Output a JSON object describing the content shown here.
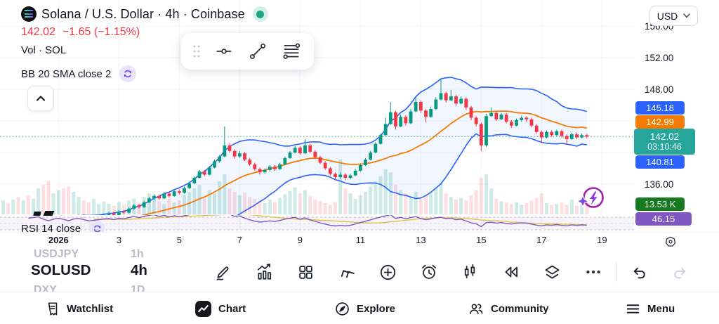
{
  "header": {
    "title": "Solana / U.S. Dollar · 4h · Coinbase",
    "price": "142.02",
    "change": "−1.65 (−1.15%)",
    "volume_label": "Vol · SOL",
    "bb_label": "BB 20 SMA close 2",
    "rsi_label": "RSI 14 close"
  },
  "currency_button": {
    "label": "USD"
  },
  "price_scale": {
    "labels": [
      "156.00",
      "152.00",
      "148.00",
      "136.00"
    ]
  },
  "badges": {
    "upper_band": "145.18",
    "basis": "142.99",
    "last_price": "142.02",
    "countdown": "03:10:46",
    "lower_band": "140.81",
    "volume": "13.53 K",
    "rsi": "46.15",
    "colors": {
      "band": "#2962ff",
      "basis": "#f57c00",
      "last": "#26a69a",
      "volume": "#167a1f",
      "rsi": "#7e57c2"
    }
  },
  "picker": {
    "rows": [
      {
        "symbol": "USDJPY",
        "tf": "1h"
      },
      {
        "symbol": "SOLUSD",
        "tf": "4h"
      },
      {
        "symbol": "DXY",
        "tf": "1D"
      }
    ],
    "active_index": 1
  },
  "floating_toolbar": {
    "tools": [
      "drag-handle",
      "horizontal-line-tool",
      "trend-line-tool",
      "fib-retracement-tool"
    ]
  },
  "mini_toolbar": {
    "tools": [
      "draw",
      "indicators",
      "layouts",
      "patterns",
      "add",
      "alert",
      "chart-type",
      "bar-replay",
      "object-tree",
      "more",
      "undo",
      "redo"
    ]
  },
  "nav": {
    "items": [
      "Watchlist",
      "Chart",
      "Explore",
      "Community",
      "Menu"
    ]
  },
  "chart_data": {
    "type": "candlestick",
    "symbol": "SOLUSD",
    "exchange": "Coinbase",
    "interval": "4h",
    "title": "Solana / U.S. Dollar",
    "last": {
      "price": 142.02,
      "change": -1.65,
      "change_pct": -1.15,
      "volume": "13.53 K",
      "rsi": 46.15,
      "bb_upper": 145.18,
      "bb_basis": 142.99,
      "bb_lower": 140.81,
      "countdown": "03:10:46"
    },
    "x_ticks": [
      "2026",
      "3",
      "5",
      "7",
      "9",
      "11",
      "13",
      "15",
      "17",
      "19"
    ],
    "y_gridlines": [
      156,
      152,
      148,
      144,
      140,
      136
    ],
    "indicators": {
      "bollinger": {
        "period": 20,
        "stddev": 2,
        "basis_type": "SMA"
      },
      "rsi": {
        "period": 14
      },
      "rsi_levels": [
        70,
        50,
        30
      ]
    },
    "candles": [
      [
        129.9,
        130.1,
        129.6,
        129.8
      ],
      [
        129.8,
        130.3,
        129.6,
        130.1
      ],
      [
        130.1,
        130.3,
        129.7,
        129.9
      ],
      [
        129.9,
        130.5,
        129.7,
        130.3
      ],
      [
        130.3,
        130.5,
        130.0,
        130.2
      ],
      [
        130.2,
        130.8,
        130.0,
        130.6
      ],
      [
        130.6,
        130.8,
        130.2,
        130.4
      ],
      [
        130.4,
        131.0,
        130.2,
        130.8
      ],
      [
        130.8,
        131.0,
        130.4,
        130.6
      ],
      [
        130.6,
        131.2,
        130.4,
        131.0
      ],
      [
        131.0,
        131.2,
        130.6,
        130.8
      ],
      [
        130.8,
        131.3,
        130.6,
        131.1
      ],
      [
        131.1,
        131.3,
        130.7,
        130.9
      ],
      [
        130.9,
        131.5,
        130.7,
        131.3
      ],
      [
        131.3,
        131.5,
        130.9,
        131.1
      ],
      [
        131.1,
        131.7,
        130.9,
        131.4
      ],
      [
        131.4,
        131.8,
        131.2,
        131.6
      ],
      [
        131.6,
        131.8,
        131.0,
        131.2
      ],
      [
        131.2,
        131.4,
        130.7,
        130.9
      ],
      [
        130.9,
        131.6,
        130.8,
        131.4
      ],
      [
        131.4,
        131.9,
        131.2,
        131.7
      ],
      [
        131.7,
        131.9,
        131.3,
        131.5
      ],
      [
        131.5,
        131.7,
        131.0,
        131.2
      ],
      [
        131.2,
        132.0,
        131.1,
        131.8
      ],
      [
        131.8,
        132.2,
        131.6,
        132.0
      ],
      [
        132.0,
        132.2,
        131.6,
        131.8
      ],
      [
        131.8,
        132.0,
        131.3,
        131.5
      ],
      [
        131.5,
        131.9,
        131.3,
        131.7
      ],
      [
        131.7,
        132.1,
        131.5,
        131.9
      ],
      [
        131.9,
        132.3,
        131.7,
        132.1
      ],
      [
        132.1,
        132.5,
        131.9,
        132.3
      ],
      [
        132.3,
        132.5,
        131.9,
        132.1
      ],
      [
        132.1,
        132.7,
        132.0,
        132.5
      ],
      [
        132.5,
        132.7,
        132.2,
        132.4
      ],
      [
        132.4,
        133.1,
        132.3,
        132.9
      ],
      [
        132.9,
        133.5,
        132.7,
        133.3
      ],
      [
        133.3,
        133.5,
        132.9,
        133.1
      ],
      [
        133.1,
        133.9,
        133.0,
        133.7
      ],
      [
        133.7,
        134.4,
        133.6,
        134.2
      ],
      [
        134.2,
        134.7,
        134.0,
        134.5
      ],
      [
        134.5,
        134.7,
        134.0,
        134.2
      ],
      [
        134.2,
        135.0,
        134.1,
        134.8
      ],
      [
        134.8,
        135.0,
        134.3,
        134.5
      ],
      [
        134.5,
        135.3,
        134.4,
        135.1
      ],
      [
        135.1,
        135.3,
        134.7,
        134.9
      ],
      [
        134.9,
        135.7,
        134.8,
        135.5
      ],
      [
        135.5,
        136.3,
        135.4,
        136.1
      ],
      [
        136.1,
        137.0,
        136.0,
        136.8
      ],
      [
        136.8,
        137.8,
        136.7,
        137.6
      ],
      [
        137.6,
        137.8,
        137.0,
        137.2
      ],
      [
        137.2,
        138.3,
        137.1,
        138.1
      ],
      [
        138.1,
        139.1,
        138.0,
        138.9
      ],
      [
        138.9,
        139.7,
        138.7,
        139.5
      ],
      [
        139.5,
        143.3,
        139.4,
        140.9
      ],
      [
        140.9,
        141.2,
        140.0,
        140.2
      ],
      [
        140.2,
        140.4,
        139.2,
        139.5
      ],
      [
        139.5,
        140.2,
        139.3,
        139.9
      ],
      [
        139.9,
        140.1,
        138.9,
        139.1
      ],
      [
        139.1,
        139.3,
        138.3,
        138.5
      ],
      [
        138.5,
        138.7,
        137.7,
        137.9
      ],
      [
        137.9,
        138.1,
        137.2,
        137.5
      ],
      [
        137.5,
        138.0,
        137.3,
        137.8
      ],
      [
        137.8,
        138.4,
        137.6,
        138.2
      ],
      [
        138.2,
        138.4,
        137.7,
        137.9
      ],
      [
        137.9,
        138.7,
        137.8,
        138.5
      ],
      [
        138.5,
        139.5,
        138.4,
        139.3
      ],
      [
        139.3,
        140.2,
        139.2,
        140.0
      ],
      [
        140.0,
        140.8,
        139.9,
        140.6
      ],
      [
        140.6,
        140.8,
        139.7,
        139.9
      ],
      [
        139.9,
        141.7,
        139.8,
        140.9
      ],
      [
        140.9,
        141.1,
        139.9,
        140.1
      ],
      [
        140.1,
        140.3,
        139.2,
        139.4
      ],
      [
        139.4,
        139.6,
        138.5,
        138.7
      ],
      [
        138.7,
        138.9,
        137.8,
        138.0
      ],
      [
        138.0,
        138.2,
        137.1,
        137.3
      ],
      [
        137.3,
        137.5,
        136.6,
        136.9
      ],
      [
        136.9,
        137.5,
        136.7,
        137.2
      ],
      [
        137.2,
        137.4,
        136.5,
        136.8
      ],
      [
        136.8,
        137.3,
        136.6,
        137.1
      ],
      [
        137.1,
        137.9,
        137.0,
        137.7
      ],
      [
        137.7,
        138.6,
        137.6,
        138.4
      ],
      [
        138.4,
        139.3,
        138.3,
        139.1
      ],
      [
        139.1,
        140.2,
        139.0,
        140.0
      ],
      [
        140.0,
        141.3,
        139.9,
        141.1
      ],
      [
        141.1,
        142.4,
        141.0,
        142.2
      ],
      [
        142.2,
        144.4,
        142.1,
        143.6
      ],
      [
        143.6,
        146.4,
        143.5,
        145.1
      ],
      [
        145.1,
        145.3,
        142.9,
        143.3
      ],
      [
        143.3,
        144.8,
        143.2,
        144.5
      ],
      [
        144.5,
        144.7,
        143.4,
        143.7
      ],
      [
        143.7,
        145.5,
        143.6,
        145.2
      ],
      [
        145.2,
        147.1,
        145.1,
        146.4
      ],
      [
        146.4,
        146.6,
        145.0,
        145.3
      ],
      [
        145.3,
        145.5,
        143.8,
        144.5
      ],
      [
        144.5,
        145.8,
        144.4,
        145.5
      ],
      [
        145.5,
        147.0,
        145.4,
        146.7
      ],
      [
        146.7,
        149.3,
        146.6,
        147.5
      ],
      [
        147.5,
        147.7,
        146.3,
        146.6
      ],
      [
        146.6,
        147.9,
        146.5,
        147.1
      ],
      [
        147.1,
        147.3,
        145.9,
        146.2
      ],
      [
        146.2,
        147.1,
        146.1,
        146.8
      ],
      [
        146.8,
        147.0,
        145.4,
        145.7
      ],
      [
        145.7,
        145.9,
        144.1,
        144.4
      ],
      [
        144.4,
        144.6,
        143.3,
        143.6
      ],
      [
        143.6,
        143.8,
        140.2,
        140.9
      ],
      [
        140.9,
        144.9,
        140.7,
        144.6
      ],
      [
        144.6,
        145.7,
        144.5,
        145.0
      ],
      [
        145.0,
        145.2,
        144.0,
        144.2
      ],
      [
        144.2,
        145.0,
        144.1,
        144.8
      ],
      [
        144.8,
        145.0,
        143.7,
        143.9
      ],
      [
        143.9,
        144.1,
        143.1,
        143.4
      ],
      [
        143.4,
        144.3,
        143.3,
        144.1
      ],
      [
        144.1,
        144.6,
        143.9,
        144.4
      ],
      [
        144.4,
        144.6,
        143.9,
        144.2
      ],
      [
        144.2,
        144.4,
        143.2,
        143.4
      ],
      [
        143.4,
        143.6,
        142.4,
        142.6
      ],
      [
        142.6,
        142.8,
        141.3,
        141.9
      ],
      [
        141.9,
        142.8,
        141.8,
        142.6
      ],
      [
        142.6,
        142.8,
        142.0,
        142.2
      ],
      [
        142.2,
        142.9,
        142.1,
        142.7
      ],
      [
        142.7,
        142.9,
        141.9,
        142.1
      ],
      [
        142.1,
        142.3,
        141.1,
        141.7
      ],
      [
        141.7,
        142.5,
        141.6,
        142.3
      ],
      [
        142.3,
        142.5,
        141.7,
        141.9
      ],
      [
        141.9,
        142.4,
        141.8,
        142.2
      ],
      [
        142.2,
        142.4,
        141.8,
        142.02
      ]
    ],
    "volumes_k": [
      10,
      12,
      9,
      14,
      11,
      13,
      10,
      15,
      12,
      16,
      13,
      17,
      20,
      16,
      22,
      18,
      30,
      34,
      38,
      24,
      28,
      30,
      32,
      26,
      20,
      16,
      14,
      18,
      12,
      15,
      12,
      10,
      14,
      11,
      16,
      18,
      13,
      20,
      24,
      22,
      15,
      12,
      18,
      14,
      16,
      22,
      26,
      30,
      34,
      20,
      28,
      24,
      38,
      46,
      30,
      26,
      22,
      25,
      20,
      18,
      15,
      13,
      17,
      14,
      19,
      23,
      27,
      31,
      24,
      28,
      21,
      17,
      15,
      13,
      11,
      14,
      63,
      30,
      24,
      18,
      22,
      26,
      32,
      38,
      44,
      52,
      48,
      34,
      28,
      24,
      20,
      26,
      18,
      22,
      25,
      30,
      36,
      24,
      20,
      17,
      19,
      16,
      22,
      28,
      42,
      46,
      30,
      18,
      15,
      14,
      12,
      14,
      11,
      13,
      16,
      19,
      24,
      13,
      11,
      12,
      14,
      11,
      17,
      10,
      12,
      13.53
    ]
  }
}
